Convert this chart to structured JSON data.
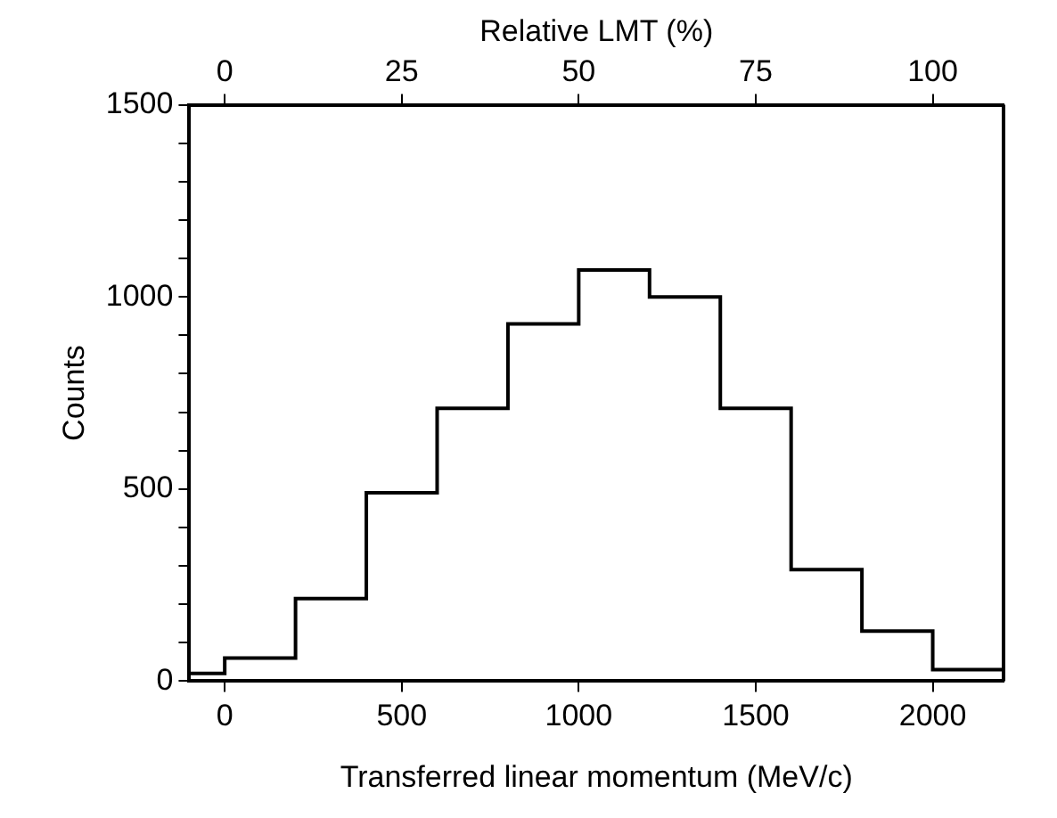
{
  "chart_data": {
    "type": "histogram",
    "xlabel": "Transferred linear momentum (MeV/c)",
    "ylabel": "Counts",
    "x2label": "Relative LMT (%)",
    "bins": [
      -100,
      0,
      200,
      400,
      600,
      800,
      1000,
      1200,
      1400,
      1600,
      1800,
      2000,
      2200
    ],
    "values": [
      20,
      60,
      215,
      490,
      710,
      930,
      1070,
      1000,
      710,
      290,
      130,
      30
    ],
    "color": "#000000",
    "xlim": [
      -100,
      2200
    ],
    "xticks": [
      0,
      500,
      1000,
      1500,
      2000
    ],
    "x2lim": [
      -5,
      110
    ],
    "x2ticks": [
      0,
      25,
      50,
      75,
      100
    ],
    "ylim": [
      0,
      1500
    ],
    "yticks": [
      0,
      {
        "value": 100,
        "label": null
      },
      {
        "value": 200,
        "label": null
      },
      {
        "value": 300,
        "label": null
      },
      {
        "value": 400,
        "label": null
      },
      500,
      {
        "value": 600,
        "label": null
      },
      {
        "value": 700,
        "label": null
      },
      {
        "value": 800,
        "label": null
      },
      {
        "value": 900,
        "label": null
      },
      1000,
      {
        "value": 1100,
        "label": null
      },
      {
        "value": 1200,
        "label": null
      },
      {
        "value": 1300,
        "label": null
      },
      {
        "value": 1400,
        "label": null
      },
      1500
    ],
    "grid": false,
    "legend": false
  }
}
